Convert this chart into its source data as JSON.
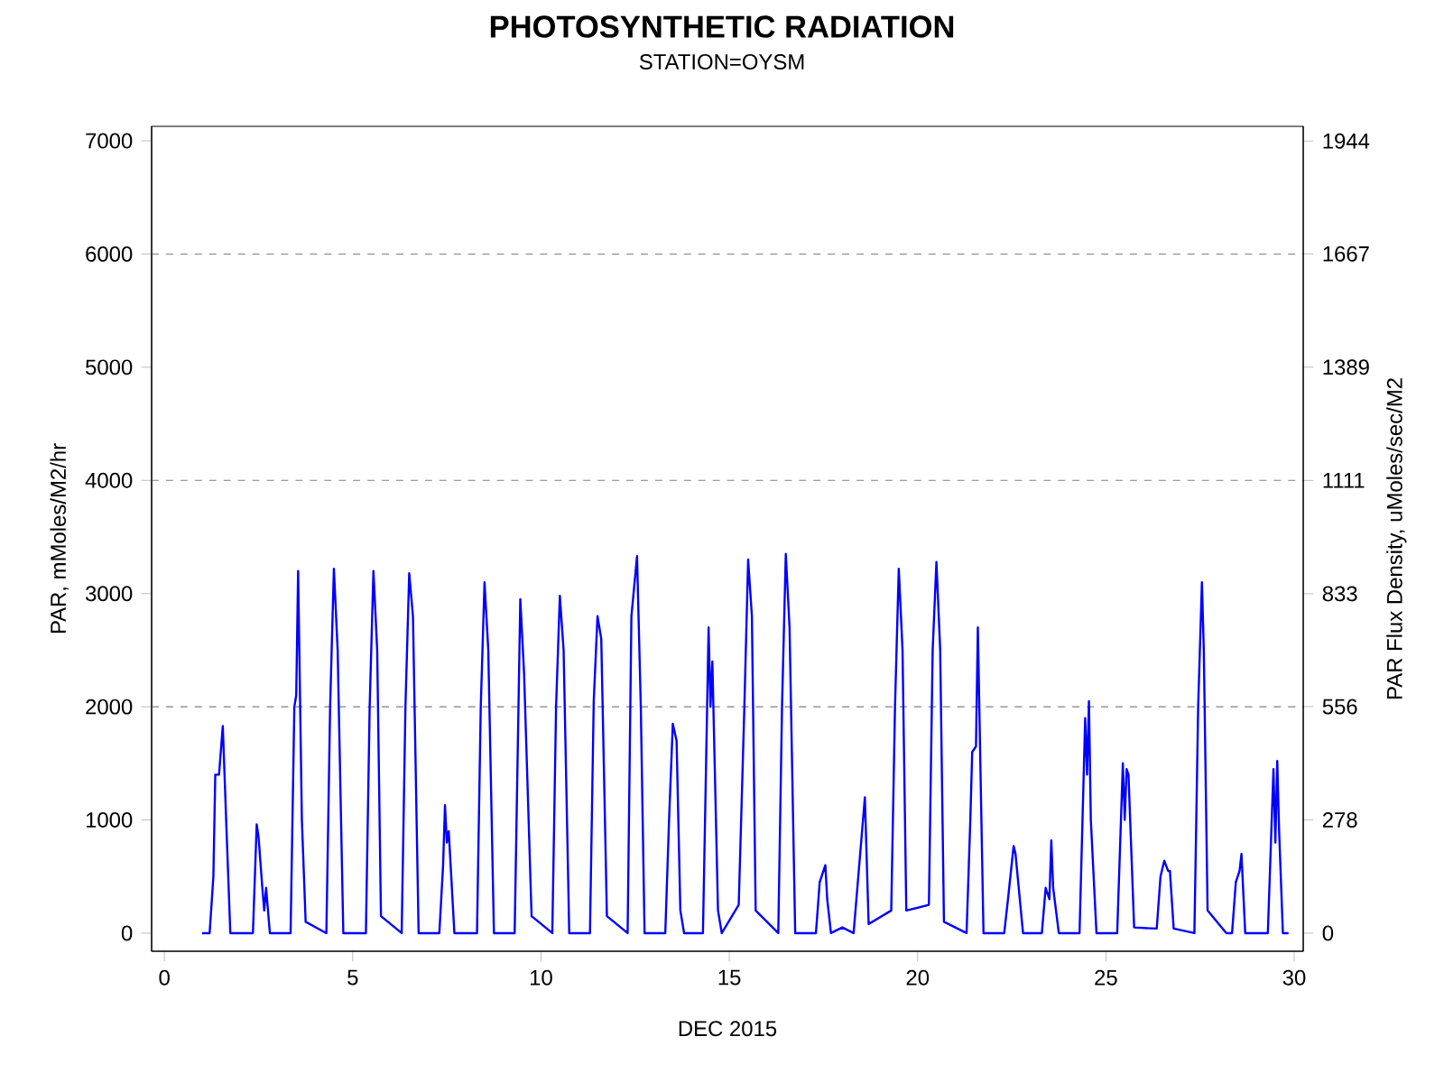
{
  "chart_data": {
    "type": "line",
    "title": "PHOTOSYNTHETIC RADIATION",
    "subtitle": "STATION=OYSM",
    "xlabel": "DEC 2015",
    "ylabel": "PAR, mMoles/M2/hr",
    "y2label": "PAR Flux Density, uMoles/sec/M2",
    "xlim": [
      -0.34,
      30.24
    ],
    "xticks": [
      0,
      5,
      10,
      15,
      20,
      25,
      30
    ],
    "ylim": [
      -160,
      7128
    ],
    "yticks": [
      0,
      1000,
      2000,
      3000,
      4000,
      5000,
      6000,
      7000
    ],
    "y2lim": [
      -44.4,
      1980
    ],
    "y2ticks": [
      0,
      278,
      556,
      833,
      1111,
      1389,
      1667,
      1944
    ],
    "marker": "none",
    "line_style": "solid",
    "grid": false,
    "ref_lines": [
      {
        "axis": "y",
        "value": 2000,
        "color": "#808080",
        "line_style": "dashed"
      },
      {
        "axis": "y",
        "value": 4000,
        "color": "#808080",
        "line_style": "dashed"
      },
      {
        "axis": "y",
        "value": 6000,
        "color": "#808080",
        "line_style": "dashed"
      }
    ],
    "series": [
      {
        "color": "#0000ff",
        "x": [
          1.0,
          1.2,
          1.3,
          1.35,
          1.45,
          1.55,
          1.65,
          1.75,
          2.35,
          2.45,
          2.5,
          2.6,
          2.65,
          2.7,
          2.8,
          3.35,
          3.45,
          3.5,
          3.55,
          3.65,
          3.75,
          4.3,
          4.4,
          4.5,
          4.6,
          4.75,
          5.35,
          5.45,
          5.55,
          5.65,
          5.75,
          6.3,
          6.4,
          6.5,
          6.6,
          6.75,
          7.3,
          7.4,
          7.45,
          7.5,
          7.55,
          7.7,
          8.3,
          8.4,
          8.5,
          8.6,
          8.75,
          9.3,
          9.45,
          9.55,
          9.75,
          10.3,
          10.4,
          10.5,
          10.6,
          10.75,
          11.3,
          11.4,
          11.5,
          11.6,
          11.75,
          12.3,
          12.4,
          12.55,
          12.65,
          12.75,
          13.3,
          13.4,
          13.5,
          13.6,
          13.7,
          13.8,
          14.3,
          14.45,
          14.5,
          14.55,
          14.7,
          14.8,
          15.25,
          15.4,
          15.5,
          15.6,
          15.7,
          16.3,
          16.4,
          16.5,
          16.6,
          16.75,
          17.3,
          17.4,
          17.55,
          17.6,
          17.7,
          18.0,
          18.3,
          18.4,
          18.6,
          18.7,
          19.3,
          19.4,
          19.5,
          19.6,
          19.7,
          20.3,
          20.4,
          20.5,
          20.6,
          20.7,
          21.3,
          21.4,
          21.45,
          21.55,
          21.6,
          21.75,
          22.3,
          22.4,
          22.55,
          22.6,
          22.8,
          23.3,
          23.4,
          23.5,
          23.55,
          23.6,
          23.75,
          24.3,
          24.45,
          24.5,
          24.55,
          24.6,
          24.75,
          25.3,
          25.45,
          25.5,
          25.55,
          25.6,
          25.75,
          26.35,
          26.45,
          26.55,
          26.65,
          26.7,
          26.8,
          27.35,
          27.45,
          27.55,
          27.6,
          27.7,
          28.2,
          28.35,
          28.45,
          28.55,
          28.6,
          28.7,
          29.3,
          29.45,
          29.5,
          29.55,
          29.6,
          29.7,
          29.85
        ],
        "values": [
          0,
          0,
          500,
          1400,
          1400,
          1830,
          900,
          0,
          0,
          960,
          850,
          400,
          200,
          400,
          0,
          0,
          2000,
          2100,
          3200,
          1000,
          100,
          0,
          2000,
          3220,
          2500,
          0,
          0,
          2000,
          3200,
          2500,
          150,
          0,
          2000,
          3180,
          2800,
          0,
          0,
          600,
          1130,
          800,
          900,
          0,
          0,
          2000,
          3100,
          2500,
          0,
          0,
          2950,
          2300,
          150,
          0,
          2000,
          2980,
          2500,
          0,
          0,
          2050,
          2800,
          2600,
          150,
          0,
          2800,
          3330,
          2000,
          0,
          0,
          1000,
          1850,
          1700,
          200,
          0,
          0,
          2700,
          2000,
          2400,
          200,
          0,
          250,
          2000,
          3300,
          2800,
          200,
          0,
          2000,
          3350,
          2700,
          0,
          0,
          450,
          600,
          300,
          0,
          50,
          0,
          400,
          1200,
          80,
          200,
          2000,
          3220,
          2500,
          200,
          250,
          2500,
          3280,
          2500,
          100,
          0,
          1000,
          1600,
          1650,
          2700,
          0,
          0,
          300,
          770,
          700,
          0,
          0,
          400,
          300,
          820,
          400,
          0,
          0,
          1900,
          1400,
          2050,
          1000,
          0,
          0,
          1500,
          1000,
          1450,
          1400,
          50,
          40,
          500,
          640,
          550,
          550,
          40,
          0,
          2000,
          3100,
          2500,
          200,
          0,
          0,
          450,
          550,
          700,
          0,
          0,
          1450,
          800,
          1520,
          900,
          0,
          0
        ]
      }
    ]
  }
}
